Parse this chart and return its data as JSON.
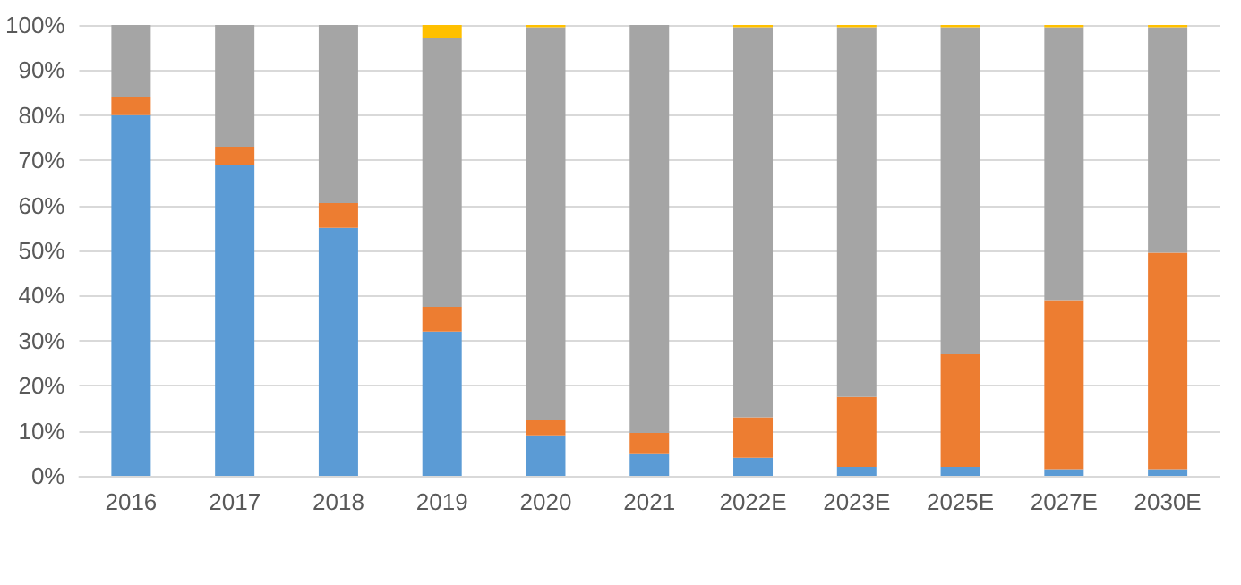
{
  "chart_data": {
    "type": "bar",
    "stacked": true,
    "categories": [
      "2016",
      "2017",
      "2018",
      "2019",
      "2020",
      "2021",
      "2022E",
      "2023E",
      "2025E",
      "2027E",
      "2030E"
    ],
    "series": [
      {
        "color": "#5b9bd5",
        "values": [
          80,
          69,
          55,
          32,
          9,
          5,
          4,
          2,
          2,
          1.5,
          1.5
        ]
      },
      {
        "color": "#ed7d31",
        "values": [
          4,
          4,
          5.5,
          5.5,
          3.5,
          4.5,
          9,
          15.5,
          25,
          37.5,
          48
        ]
      },
      {
        "color": "#a5a5a5",
        "values": [
          16,
          27,
          39.5,
          59.5,
          87,
          90.5,
          86.5,
          82,
          72.5,
          60.5,
          50
        ]
      },
      {
        "color": "#ffc000",
        "values": [
          0,
          0,
          0,
          3,
          0.5,
          0,
          0.5,
          0.5,
          0.5,
          0.5,
          0.5
        ]
      }
    ],
    "ylim": [
      0,
      100
    ],
    "yticks": [
      {
        "value": 0,
        "label": "0%"
      },
      {
        "value": 10,
        "label": "10%"
      },
      {
        "value": 20,
        "label": "20%"
      },
      {
        "value": 30,
        "label": "30%"
      },
      {
        "value": 40,
        "label": "40%"
      },
      {
        "value": 50,
        "label": "50%"
      },
      {
        "value": 60,
        "label": "60%"
      },
      {
        "value": 70,
        "label": "70%"
      },
      {
        "value": 80,
        "label": "80%"
      },
      {
        "value": 90,
        "label": "90%"
      },
      {
        "value": 100,
        "label": "100%"
      }
    ],
    "grid": "y"
  }
}
